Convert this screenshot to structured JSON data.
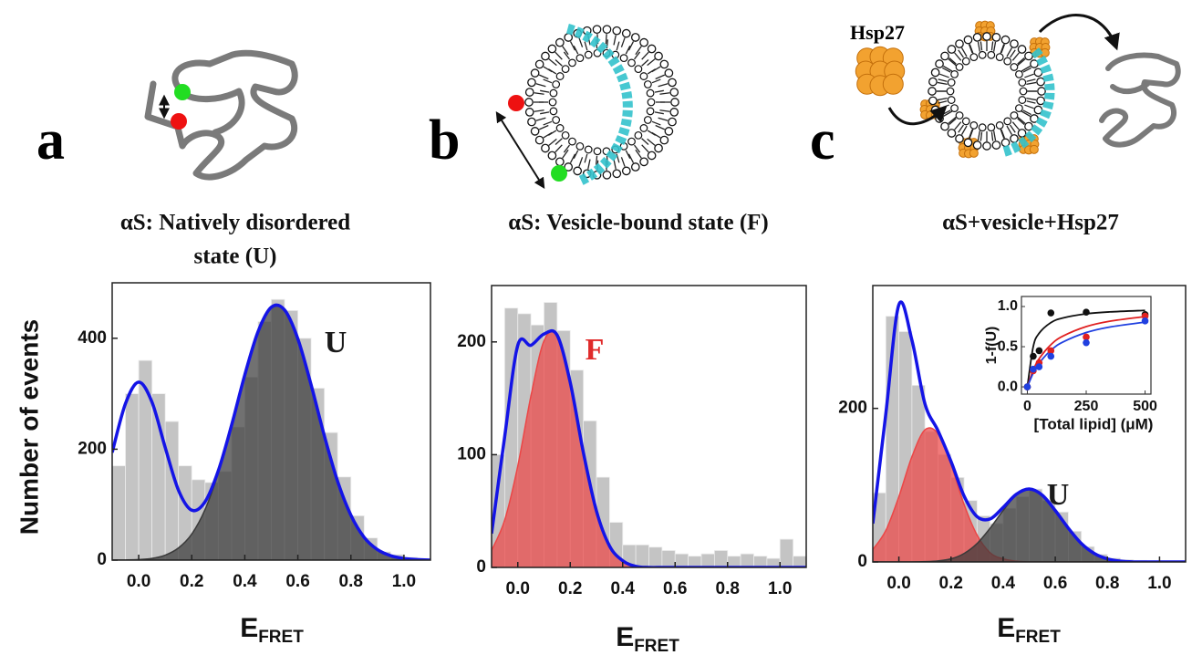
{
  "panel_labels": [
    "a",
    "b",
    "c"
  ],
  "illustration_labels": {
    "protein": "Hsp27"
  },
  "chart_data": [
    {
      "type": "histogram",
      "title": [
        "αS: Natively disordered",
        "state (U)"
      ],
      "xlabel": {
        "main": "E",
        "sub": "FRET"
      },
      "ylabel": "Number of events",
      "annotation": {
        "text": "U",
        "color": "#1a1a1a"
      },
      "bins": [
        -0.1,
        -0.05,
        0,
        0.05,
        0.1,
        0.15,
        0.2,
        0.25,
        0.3,
        0.35,
        0.4,
        0.45,
        0.5,
        0.55,
        0.6,
        0.65,
        0.7,
        0.75,
        0.8,
        0.85,
        0.9,
        0.95,
        1,
        1.05,
        1.1
      ],
      "counts": [
        170,
        300,
        360,
        300,
        250,
        170,
        145,
        140,
        160,
        240,
        330,
        430,
        470,
        450,
        400,
        310,
        230,
        150,
        80,
        40,
        15,
        10,
        5,
        3
      ],
      "bar_color": "#c4c4c4",
      "xlim": [
        -0.1,
        1.1
      ],
      "xticks": [
        {
          "value": 0,
          "label": "0.0"
        },
        {
          "value": 0.2,
          "label": "0.2"
        },
        {
          "value": 0.4,
          "label": "0.4"
        },
        {
          "value": 0.6,
          "label": "0.6"
        },
        {
          "value": 0.8,
          "label": "0.8"
        },
        {
          "value": 1,
          "label": "1.0"
        }
      ],
      "ylim": [
        0,
        500
      ],
      "yticks": [
        0,
        200,
        400
      ],
      "fit_x": [
        -0.1,
        -0.05,
        0,
        0.05,
        0.1,
        0.15,
        0.2,
        0.25,
        0.3,
        0.35,
        0.4,
        0.45,
        0.5,
        0.55,
        0.6,
        0.65,
        0.7,
        0.75,
        0.8,
        0.85,
        0.9,
        0.95,
        1,
        1.05,
        1.1
      ],
      "series": [
        {
          "color": "#3a3a3a",
          "fill": true,
          "values": [
            0.1,
            0.3,
            1,
            3,
            9,
            22,
            47,
            91,
            157,
            242,
            334,
            412,
            456,
            451,
            399,
            316,
            224,
            142,
            81,
            41,
            19,
            8,
            3,
            1,
            0
          ]
        },
        {
          "color": "#1414e6",
          "fill": false,
          "values": [
            194,
            282,
            321,
            285,
            203,
            126,
            90,
            105,
            161,
            243,
            334,
            412,
            456,
            451,
            399,
            316,
            224,
            142,
            81,
            41,
            19,
            8,
            3,
            1,
            0
          ]
        }
      ]
    },
    {
      "type": "histogram",
      "title": [
        "αS: Vesicle-bound state (F)"
      ],
      "xlabel": {
        "main": "E",
        "sub": "FRET"
      },
      "annotation": {
        "text": "F",
        "color": "#e02a2a"
      },
      "bins": [
        -0.1,
        -0.05,
        0,
        0.05,
        0.1,
        0.15,
        0.2,
        0.25,
        0.3,
        0.35,
        0.4,
        0.45,
        0.5,
        0.55,
        0.6,
        0.65,
        0.7,
        0.75,
        0.8,
        0.85,
        0.9,
        0.95,
        1,
        1.05,
        1.1
      ],
      "counts": [
        100,
        230,
        225,
        215,
        235,
        210,
        175,
        130,
        80,
        40,
        20,
        20,
        18,
        15,
        12,
        10,
        12,
        15,
        10,
        12,
        10,
        8,
        25,
        10
      ],
      "bar_color": "#c4c4c4",
      "xlim": [
        -0.1,
        1.1
      ],
      "xticks": [
        {
          "value": 0,
          "label": "0.0"
        },
        {
          "value": 0.2,
          "label": "0.2"
        },
        {
          "value": 0.4,
          "label": "0.4"
        },
        {
          "value": 0.6,
          "label": "0.6"
        },
        {
          "value": 0.8,
          "label": "0.8"
        },
        {
          "value": 1,
          "label": "1.0"
        }
      ],
      "ylim": [
        0,
        250
      ],
      "yticks": [
        0,
        100,
        200
      ],
      "fit_x": [
        -0.1,
        -0.05,
        0,
        0.05,
        0.1,
        0.15,
        0.2,
        0.25,
        0.3,
        0.35,
        0.4,
        0.45,
        0.5,
        0.55,
        0.6,
        0.65,
        0.7,
        0.75,
        0.8,
        0.85,
        0.9,
        0.95,
        1,
        1.05,
        1.1
      ],
      "series": [
        {
          "color": "#ec4646",
          "fill": true,
          "values": [
            15,
            42,
            90,
            152,
            201,
            206,
            164,
            102,
            50,
            19,
            6,
            1,
            0,
            0,
            0,
            0,
            0,
            0,
            0,
            0,
            0,
            0,
            0,
            0,
            0
          ]
        },
        {
          "color": "#1414e6",
          "fill": false,
          "values": [
            30,
            116,
            197,
            197,
            207,
            206,
            164,
            102,
            50,
            19,
            6,
            1,
            0,
            0,
            0,
            0,
            0,
            0,
            0,
            0,
            0,
            0,
            0,
            0,
            0
          ]
        }
      ]
    },
    {
      "type": "histogram",
      "title": [
        "αS+vesicle+Hsp27"
      ],
      "xlabel": {
        "main": "E",
        "sub": "FRET"
      },
      "annotation": {
        "text": "U",
        "color": "#1a1a1a"
      },
      "bins": [
        -0.1,
        -0.05,
        0,
        0.05,
        0.1,
        0.15,
        0.2,
        0.25,
        0.3,
        0.35,
        0.4,
        0.45,
        0.5,
        0.55,
        0.6,
        0.65,
        0.7,
        0.75,
        0.8,
        0.85,
        0.9,
        0.95,
        1,
        1.05,
        1.1
      ],
      "counts": [
        90,
        320,
        300,
        230,
        170,
        140,
        110,
        80,
        60,
        50,
        70,
        85,
        95,
        80,
        65,
        40,
        20,
        10,
        5,
        3,
        2,
        1,
        1,
        0
      ],
      "bar_color": "#c4c4c4",
      "xlim": [
        -0.1,
        1.1
      ],
      "xticks": [
        {
          "value": 0,
          "label": "0.0"
        },
        {
          "value": 0.2,
          "label": "0.2"
        },
        {
          "value": 0.4,
          "label": "0.4"
        },
        {
          "value": 0.6,
          "label": "0.6"
        },
        {
          "value": 0.8,
          "label": "0.8"
        },
        {
          "value": 1,
          "label": "1.0"
        }
      ],
      "ylim": [
        0,
        360
      ],
      "yticks": [
        0,
        200
      ],
      "fit_x": [
        -0.1,
        -0.05,
        0,
        0.05,
        0.1,
        0.15,
        0.2,
        0.25,
        0.3,
        0.35,
        0.4,
        0.45,
        0.5,
        0.55,
        0.6,
        0.65,
        0.7,
        0.75,
        0.8,
        0.85,
        0.9,
        0.95,
        1,
        1.05,
        1.1
      ],
      "series": [
        {
          "color": "#ec4646",
          "fill": true,
          "values": [
            16,
            41,
            85,
            137,
            172,
            167,
            127,
            75,
            35,
            12,
            4,
            1,
            0,
            0,
            0,
            0,
            0,
            0,
            0,
            0,
            0,
            0,
            0,
            0,
            0
          ]
        },
        {
          "color": "#3a3a3a",
          "fill": true,
          "values": [
            0,
            0,
            0,
            0,
            0.4,
            1.4,
            4,
            11,
            24,
            44,
            67,
            87,
            95,
            87,
            67,
            44,
            24,
            11,
            4,
            1,
            0,
            0,
            0,
            0,
            0
          ]
        },
        {
          "color": "#1414e6",
          "fill": false,
          "values": [
            50,
            193,
            335,
            289,
            206,
            171,
            131,
            86,
            59,
            56,
            71,
            88,
            95,
            87,
            67,
            44,
            24,
            11,
            4,
            1,
            0,
            0,
            0,
            0,
            0
          ]
        }
      ]
    },
    {
      "type": "scatter",
      "xlabel": "[Total lipid] (μM)",
      "ylabel": "1-f(U)",
      "x": [
        0,
        25,
        50,
        100,
        250,
        500
      ],
      "xlim": [
        -25,
        525
      ],
      "xticks": [
        0,
        250,
        500
      ],
      "ylim": [
        -0.09,
        1.125
      ],
      "yticks": [
        {
          "value": 0,
          "label": "0.0"
        },
        {
          "value": 0.5,
          "label": "0.5"
        },
        {
          "value": 1,
          "label": "1.0"
        }
      ],
      "fit_x": [
        0,
        25,
        50,
        100,
        150,
        250,
        350,
        500
      ],
      "series": [
        {
          "color": "#111111",
          "values": [
            0,
            0.38,
            0.45,
            0.92,
            0.93,
            0.9
          ],
          "fit": [
            0,
            0.5,
            0.667,
            0.8,
            0.857,
            0.909,
            0.933,
            0.952
          ]
        },
        {
          "color": "#e02020",
          "values": [
            0,
            0.2,
            0.3,
            0.45,
            0.62,
            0.88
          ],
          "fit": [
            0,
            0.21,
            0.35,
            0.525,
            0.63,
            0.75,
            0.817,
            0.875
          ]
        },
        {
          "color": "#2040e0",
          "values": [
            0,
            0.22,
            0.25,
            0.38,
            0.55,
            0.82
          ],
          "fit": [
            0,
            0.172,
            0.294,
            0.455,
            0.556,
            0.676,
            0.745,
            0.806
          ]
        }
      ]
    }
  ]
}
